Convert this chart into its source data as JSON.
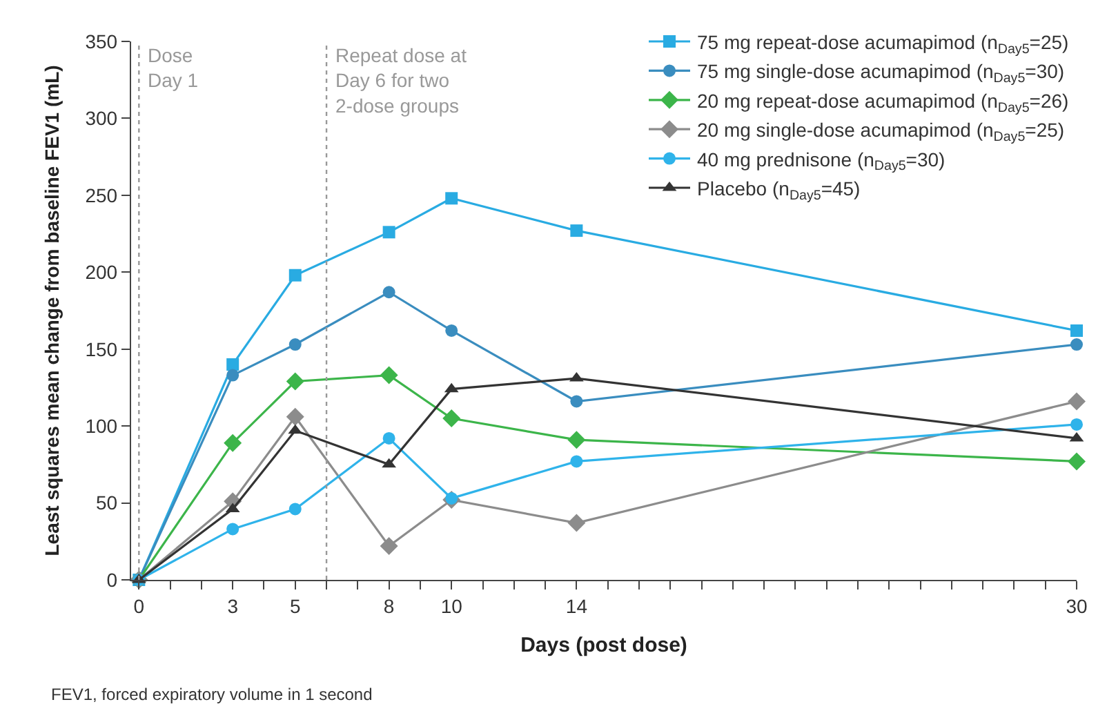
{
  "chart_data": {
    "type": "line",
    "xlabel": "Days (post dose)",
    "ylabel": "Least squares mean change from baseline FEV1 (mL)",
    "x": [
      0,
      3,
      5,
      8,
      10,
      14,
      30
    ],
    "series": [
      {
        "name": "75 mg repeat-dose acumapimod (n$_{Day5}$=25)",
        "color": "#29abe2",
        "marker": "square",
        "values": [
          0,
          140,
          198,
          226,
          248,
          227,
          162
        ]
      },
      {
        "name": "75 mg single-dose acumapimod (n$_{Day5}$=30)",
        "color": "#3a8dbf",
        "marker": "circle",
        "values": [
          0,
          133,
          153,
          187,
          162,
          116,
          153
        ]
      },
      {
        "name": "20 mg repeat-dose acumapimod (n$_{Day5}$=26)",
        "color": "#3cb54a",
        "marker": "diamond",
        "values": [
          0,
          89,
          129,
          133,
          105,
          91,
          77
        ]
      },
      {
        "name": "20 mg single-dose acumapimod (n$_{Day5}$=25)",
        "color": "#8c8c8c",
        "marker": "diamond",
        "values": [
          0,
          51,
          106,
          22,
          52,
          37,
          116
        ]
      },
      {
        "name": "40 mg prednisone (n$_{Day5}$=30)",
        "color": "#2fb3ea",
        "marker": "circle",
        "values": [
          0,
          33,
          46,
          92,
          53,
          77,
          101
        ]
      },
      {
        "name": "Placebo (n$_{Day5}$=45)",
        "color": "#333333",
        "marker": "triangle",
        "values": [
          0,
          46,
          97,
          75,
          124,
          131,
          92
        ]
      }
    ],
    "xlim": [
      -0.25,
      30
    ],
    "ylim": [
      0,
      350
    ],
    "xticks": [
      0,
      {
        "value": 1,
        "label": null
      },
      {
        "value": 2,
        "label": null
      },
      3,
      {
        "value": 4,
        "label": null
      },
      5,
      {
        "value": 6,
        "label": null
      },
      {
        "value": 7,
        "label": null
      },
      8,
      {
        "value": 9,
        "label": null
      },
      10,
      {
        "value": 11,
        "label": null
      },
      {
        "value": 12,
        "label": null
      },
      {
        "value": 13,
        "label": null
      },
      14,
      {
        "value": 15,
        "label": null
      },
      {
        "value": 16,
        "label": null
      },
      {
        "value": 17,
        "label": null
      },
      {
        "value": 18,
        "label": null
      },
      {
        "value": 19,
        "label": null
      },
      {
        "value": 20,
        "label": null
      },
      {
        "value": 21,
        "label": null
      },
      {
        "value": 22,
        "label": null
      },
      {
        "value": 23,
        "label": null
      },
      {
        "value": 24,
        "label": null
      },
      {
        "value": 25,
        "label": null
      },
      {
        "value": 26,
        "label": null
      },
      {
        "value": 27,
        "label": null
      },
      {
        "value": 28,
        "label": null
      },
      {
        "value": 29,
        "label": null
      },
      30
    ],
    "yticks": [
      0,
      50,
      100,
      150,
      200,
      250,
      300,
      350
    ],
    "ref_lines": [
      {
        "axis": "x",
        "value": 0,
        "label": "Dose\nDay 1",
        "color": "#999999",
        "line_style": "dotted"
      },
      {
        "axis": "x",
        "value": 6,
        "label": "Repeat dose at\nDay 6 for two\n2-dose groups",
        "color": "#999999",
        "line_style": "dotted"
      }
    ],
    "annotations": [
      "FEV1, forced expiratory volume in 1 second"
    ],
    "legend": "top right",
    "line_style": "solid"
  }
}
